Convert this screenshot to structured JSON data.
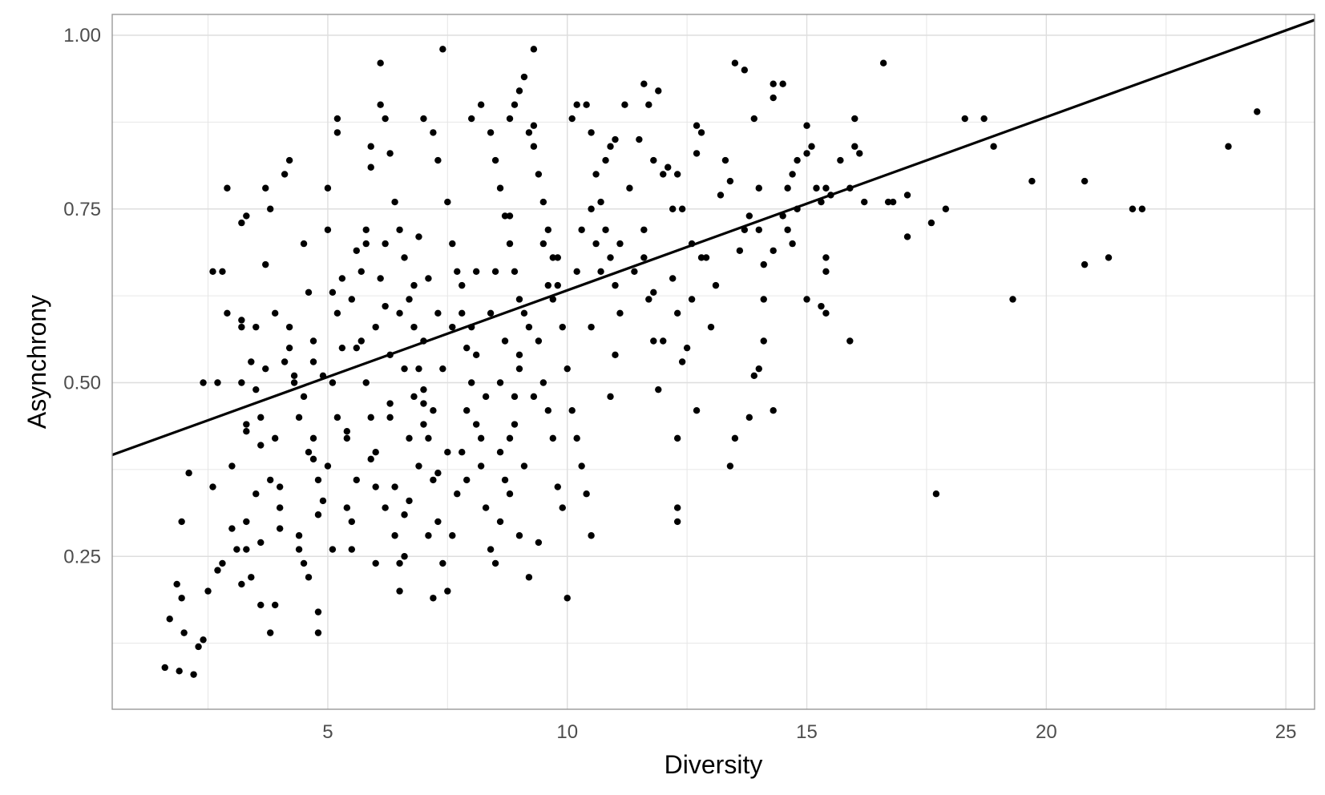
{
  "chart_data": {
    "type": "scatter",
    "title": "",
    "xlabel": "Diversity",
    "ylabel": "Asynchrony",
    "xlim": [
      0.5,
      25.6
    ],
    "ylim": [
      0.03,
      1.03
    ],
    "x_ticks": [
      5,
      10,
      15,
      20,
      25
    ],
    "x_tick_labels": [
      "5",
      "10",
      "15",
      "20",
      "25"
    ],
    "y_ticks": [
      0.25,
      0.5,
      0.75,
      1.0
    ],
    "y_tick_labels": [
      "0.25",
      "0.50",
      "0.75",
      "1.00"
    ],
    "grid": true,
    "legend": "none",
    "colors": {
      "points": "#000000",
      "line": "#000000",
      "grid": "#e6e6e6",
      "panel_border": "#999999",
      "tick_text": "#4d4d4d"
    },
    "trend_line": {
      "x": [
        0.5,
        25.6
      ],
      "y": [
        0.396,
        1.022
      ]
    },
    "points": [
      [
        1.6,
        0.09
      ],
      [
        1.9,
        0.085
      ],
      [
        2.2,
        0.08
      ],
      [
        2.3,
        0.12
      ],
      [
        2.4,
        0.13
      ],
      [
        2.0,
        0.14
      ],
      [
        1.7,
        0.16
      ],
      [
        1.95,
        0.19
      ],
      [
        1.85,
        0.21
      ],
      [
        2.5,
        0.2
      ],
      [
        2.7,
        0.23
      ],
      [
        2.6,
        0.35
      ],
      [
        2.1,
        0.37
      ],
      [
        1.95,
        0.3
      ],
      [
        2.4,
        0.5
      ],
      [
        2.7,
        0.5
      ],
      [
        2.9,
        0.6
      ],
      [
        2.6,
        0.66
      ],
      [
        2.8,
        0.66
      ],
      [
        2.9,
        0.78
      ],
      [
        3.2,
        0.73
      ],
      [
        3.3,
        0.74
      ],
      [
        3.2,
        0.59
      ],
      [
        3.2,
        0.58
      ],
      [
        3.2,
        0.5
      ],
      [
        3.3,
        0.44
      ],
      [
        3.3,
        0.43
      ],
      [
        3.2,
        0.21
      ],
      [
        3.3,
        0.26
      ],
      [
        3.3,
        0.3
      ],
      [
        3.5,
        0.34
      ],
      [
        3.5,
        0.49
      ],
      [
        3.6,
        0.41
      ],
      [
        3.7,
        0.52
      ],
      [
        3.7,
        0.67
      ],
      [
        3.7,
        0.78
      ],
      [
        3.8,
        0.75
      ],
      [
        3.6,
        0.27
      ],
      [
        3.6,
        0.18
      ],
      [
        3.8,
        0.14
      ],
      [
        3.9,
        0.18
      ],
      [
        4.0,
        0.29
      ],
      [
        4.0,
        0.35
      ],
      [
        4.1,
        0.53
      ],
      [
        4.1,
        0.8
      ],
      [
        4.2,
        0.82
      ],
      [
        4.2,
        0.58
      ],
      [
        4.3,
        0.5
      ],
      [
        4.4,
        0.45
      ],
      [
        4.4,
        0.26
      ],
      [
        4.5,
        0.24
      ],
      [
        4.5,
        0.7
      ],
      [
        4.6,
        0.63
      ],
      [
        4.7,
        0.53
      ],
      [
        4.7,
        0.42
      ],
      [
        4.7,
        0.39
      ],
      [
        4.8,
        0.36
      ],
      [
        4.8,
        0.31
      ],
      [
        4.8,
        0.17
      ],
      [
        4.8,
        0.14
      ],
      [
        4.9,
        0.51
      ],
      [
        5.0,
        0.72
      ],
      [
        5.0,
        0.78
      ],
      [
        5.1,
        0.63
      ],
      [
        5.1,
        0.5
      ],
      [
        5.2,
        0.6
      ],
      [
        5.2,
        0.88
      ],
      [
        5.2,
        0.86
      ],
      [
        5.3,
        0.65
      ],
      [
        5.4,
        0.43
      ],
      [
        5.4,
        0.42
      ],
      [
        5.5,
        0.3
      ],
      [
        5.5,
        0.26
      ],
      [
        5.6,
        0.55
      ],
      [
        5.7,
        0.56
      ],
      [
        5.8,
        0.7
      ],
      [
        5.8,
        0.72
      ],
      [
        5.9,
        0.84
      ],
      [
        5.9,
        0.81
      ],
      [
        5.9,
        0.39
      ],
      [
        6.0,
        0.35
      ],
      [
        6.0,
        0.24
      ],
      [
        6.1,
        0.65
      ],
      [
        6.2,
        0.7
      ],
      [
        6.2,
        0.61
      ],
      [
        6.3,
        0.47
      ],
      [
        6.3,
        0.45
      ],
      [
        6.4,
        0.35
      ],
      [
        6.5,
        0.2
      ],
      [
        6.5,
        0.24
      ],
      [
        6.6,
        0.31
      ],
      [
        6.7,
        0.33
      ],
      [
        6.8,
        0.64
      ],
      [
        6.9,
        0.71
      ],
      [
        7.0,
        0.56
      ],
      [
        7.0,
        0.47
      ],
      [
        7.0,
        0.44
      ],
      [
        7.1,
        0.28
      ],
      [
        7.2,
        0.19
      ],
      [
        7.3,
        0.37
      ],
      [
        6.1,
        0.96
      ],
      [
        6.1,
        0.9
      ],
      [
        6.2,
        0.88
      ],
      [
        6.3,
        0.83
      ],
      [
        6.4,
        0.76
      ],
      [
        6.5,
        0.72
      ],
      [
        6.6,
        0.68
      ],
      [
        6.7,
        0.62
      ],
      [
        6.8,
        0.58
      ],
      [
        6.9,
        0.52
      ],
      [
        7.0,
        0.49
      ],
      [
        7.1,
        0.42
      ],
      [
        7.2,
        0.36
      ],
      [
        7.3,
        0.3
      ],
      [
        7.4,
        0.24
      ],
      [
        7.5,
        0.2
      ],
      [
        7.6,
        0.28
      ],
      [
        7.7,
        0.34
      ],
      [
        7.8,
        0.4
      ],
      [
        7.9,
        0.46
      ],
      [
        7.0,
        0.88
      ],
      [
        7.2,
        0.86
      ],
      [
        7.3,
        0.82
      ],
      [
        7.5,
        0.76
      ],
      [
        7.6,
        0.7
      ],
      [
        7.7,
        0.66
      ],
      [
        7.8,
        0.6
      ],
      [
        7.9,
        0.55
      ],
      [
        8.0,
        0.5
      ],
      [
        8.1,
        0.44
      ],
      [
        8.2,
        0.38
      ],
      [
        8.3,
        0.32
      ],
      [
        8.4,
        0.26
      ],
      [
        8.5,
        0.24
      ],
      [
        8.6,
        0.3
      ],
      [
        8.7,
        0.36
      ],
      [
        8.8,
        0.42
      ],
      [
        8.9,
        0.48
      ],
      [
        9.0,
        0.54
      ],
      [
        9.1,
        0.6
      ],
      [
        7.4,
        0.98
      ],
      [
        8.0,
        0.88
      ],
      [
        8.2,
        0.9
      ],
      [
        8.4,
        0.86
      ],
      [
        8.5,
        0.82
      ],
      [
        8.6,
        0.78
      ],
      [
        8.7,
        0.74
      ],
      [
        8.8,
        0.7
      ],
      [
        8.9,
        0.66
      ],
      [
        9.0,
        0.62
      ],
      [
        9.3,
        0.98
      ],
      [
        9.1,
        0.94
      ],
      [
        9.0,
        0.92
      ],
      [
        8.9,
        0.9
      ],
      [
        8.8,
        0.88
      ],
      [
        9.2,
        0.86
      ],
      [
        9.3,
        0.84
      ],
      [
        9.4,
        0.8
      ],
      [
        9.5,
        0.76
      ],
      [
        9.6,
        0.72
      ],
      [
        9.7,
        0.68
      ],
      [
        9.8,
        0.64
      ],
      [
        9.9,
        0.58
      ],
      [
        10.0,
        0.52
      ],
      [
        10.1,
        0.46
      ],
      [
        10.2,
        0.42
      ],
      [
        10.3,
        0.38
      ],
      [
        10.4,
        0.34
      ],
      [
        10.5,
        0.28
      ],
      [
        10.0,
        0.19
      ],
      [
        9.5,
        0.5
      ],
      [
        9.6,
        0.46
      ],
      [
        9.7,
        0.42
      ],
      [
        9.8,
        0.35
      ],
      [
        9.9,
        0.32
      ],
      [
        9.4,
        0.27
      ],
      [
        9.2,
        0.22
      ],
      [
        9.0,
        0.28
      ],
      [
        8.8,
        0.34
      ],
      [
        8.6,
        0.4
      ],
      [
        10.1,
        0.88
      ],
      [
        10.2,
        0.9
      ],
      [
        10.4,
        0.9
      ],
      [
        10.5,
        0.86
      ],
      [
        10.6,
        0.8
      ],
      [
        10.7,
        0.76
      ],
      [
        10.8,
        0.72
      ],
      [
        10.9,
        0.68
      ],
      [
        11.0,
        0.64
      ],
      [
        11.1,
        0.6
      ],
      [
        10.5,
        0.75
      ],
      [
        10.6,
        0.7
      ],
      [
        10.7,
        0.66
      ],
      [
        10.8,
        0.82
      ],
      [
        10.9,
        0.84
      ],
      [
        11.0,
        0.85
      ],
      [
        11.2,
        0.9
      ],
      [
        11.3,
        0.78
      ],
      [
        10.9,
        0.48
      ],
      [
        11.0,
        0.54
      ],
      [
        11.5,
        0.85
      ],
      [
        11.6,
        0.93
      ],
      [
        11.7,
        0.9
      ],
      [
        11.8,
        0.82
      ],
      [
        11.9,
        0.92
      ],
      [
        12.0,
        0.8
      ],
      [
        12.1,
        0.81
      ],
      [
        12.2,
        0.75
      ],
      [
        12.3,
        0.8
      ],
      [
        12.4,
        0.75
      ],
      [
        11.6,
        0.72
      ],
      [
        11.6,
        0.68
      ],
      [
        11.7,
        0.62
      ],
      [
        11.8,
        0.56
      ],
      [
        11.9,
        0.49
      ],
      [
        12.0,
        0.56
      ],
      [
        12.2,
        0.65
      ],
      [
        12.3,
        0.6
      ],
      [
        12.4,
        0.53
      ],
      [
        12.3,
        0.42
      ],
      [
        12.3,
        0.32
      ],
      [
        12.3,
        0.3
      ],
      [
        12.5,
        0.55
      ],
      [
        12.6,
        0.7
      ],
      [
        12.7,
        0.83
      ],
      [
        12.7,
        0.87
      ],
      [
        12.8,
        0.86
      ],
      [
        12.8,
        0.68
      ],
      [
        12.9,
        0.68
      ],
      [
        13.0,
        0.58
      ],
      [
        12.7,
        0.46
      ],
      [
        13.2,
        0.77
      ],
      [
        13.3,
        0.82
      ],
      [
        13.4,
        0.79
      ],
      [
        13.5,
        0.96
      ],
      [
        13.7,
        0.95
      ],
      [
        13.8,
        0.74
      ],
      [
        13.7,
        0.72
      ],
      [
        13.8,
        0.45
      ],
      [
        13.5,
        0.42
      ],
      [
        13.4,
        0.38
      ],
      [
        13.9,
        0.88
      ],
      [
        14.0,
        0.78
      ],
      [
        14.0,
        0.72
      ],
      [
        14.1,
        0.67
      ],
      [
        14.1,
        0.56
      ],
      [
        14.1,
        0.62
      ],
      [
        14.0,
        0.52
      ],
      [
        13.9,
        0.51
      ],
      [
        14.3,
        0.91
      ],
      [
        14.3,
        0.93
      ],
      [
        14.5,
        0.93
      ],
      [
        14.3,
        0.69
      ],
      [
        14.3,
        0.46
      ],
      [
        14.6,
        0.78
      ],
      [
        14.7,
        0.8
      ],
      [
        14.6,
        0.72
      ],
      [
        14.7,
        0.7
      ],
      [
        14.8,
        0.75
      ],
      [
        14.8,
        0.82
      ],
      [
        15.0,
        0.87
      ],
      [
        15.0,
        0.83
      ],
      [
        15.1,
        0.84
      ],
      [
        15.0,
        0.62
      ],
      [
        15.2,
        0.78
      ],
      [
        15.3,
        0.76
      ],
      [
        15.3,
        0.61
      ],
      [
        15.4,
        0.6
      ],
      [
        15.4,
        0.66
      ],
      [
        15.4,
        0.68
      ],
      [
        15.4,
        0.78
      ],
      [
        15.5,
        0.77
      ],
      [
        15.7,
        0.82
      ],
      [
        15.9,
        0.56
      ],
      [
        15.9,
        0.78
      ],
      [
        16.0,
        0.88
      ],
      [
        16.0,
        0.84
      ],
      [
        16.1,
        0.83
      ],
      [
        16.2,
        0.76
      ],
      [
        16.6,
        0.96
      ],
      [
        16.7,
        0.76
      ],
      [
        16.8,
        0.76
      ],
      [
        17.1,
        0.77
      ],
      [
        17.1,
        0.71
      ],
      [
        17.6,
        0.73
      ],
      [
        17.7,
        0.34
      ],
      [
        17.9,
        0.75
      ],
      [
        18.3,
        0.88
      ],
      [
        18.7,
        0.88
      ],
      [
        18.9,
        0.84
      ],
      [
        19.3,
        0.62
      ],
      [
        19.7,
        0.79
      ],
      [
        20.8,
        0.79
      ],
      [
        20.8,
        0.67
      ],
      [
        21.3,
        0.68
      ],
      [
        21.8,
        0.75
      ],
      [
        22.0,
        0.75
      ],
      [
        23.8,
        0.84
      ],
      [
        24.4,
        0.89
      ],
      [
        9.3,
        0.87
      ],
      [
        3.0,
        0.29
      ],
      [
        3.1,
        0.26
      ],
      [
        3.4,
        0.22
      ],
      [
        3.5,
        0.58
      ],
      [
        3.9,
        0.6
      ],
      [
        4.2,
        0.55
      ],
      [
        4.3,
        0.51
      ],
      [
        4.5,
        0.48
      ],
      [
        4.6,
        0.4
      ],
      [
        4.9,
        0.33
      ],
      [
        5.0,
        0.38
      ],
      [
        5.3,
        0.55
      ],
      [
        5.5,
        0.62
      ],
      [
        5.6,
        0.69
      ],
      [
        5.7,
        0.66
      ],
      [
        5.8,
        0.5
      ],
      [
        5.9,
        0.45
      ],
      [
        6.0,
        0.4
      ],
      [
        6.2,
        0.32
      ],
      [
        6.4,
        0.28
      ],
      [
        6.6,
        0.25
      ],
      [
        6.7,
        0.42
      ],
      [
        6.9,
        0.38
      ],
      [
        7.1,
        0.65
      ],
      [
        7.4,
        0.52
      ],
      [
        7.6,
        0.58
      ],
      [
        7.8,
        0.64
      ],
      [
        8.0,
        0.58
      ],
      [
        8.1,
        0.54
      ],
      [
        8.3,
        0.48
      ],
      [
        8.4,
        0.6
      ],
      [
        8.5,
        0.66
      ],
      [
        8.7,
        0.56
      ],
      [
        8.9,
        0.44
      ],
      [
        9.1,
        0.38
      ],
      [
        9.3,
        0.48
      ],
      [
        9.4,
        0.56
      ],
      [
        9.6,
        0.64
      ],
      [
        9.8,
        0.68
      ],
      [
        10.3,
        0.72
      ],
      [
        3.4,
        0.53
      ],
      [
        3.6,
        0.45
      ],
      [
        3.8,
        0.36
      ],
      [
        4.0,
        0.32
      ],
      [
        4.4,
        0.28
      ],
      [
        4.6,
        0.22
      ],
      [
        5.1,
        0.26
      ],
      [
        5.4,
        0.32
      ],
      [
        5.6,
        0.36
      ],
      [
        6.3,
        0.54
      ],
      [
        6.5,
        0.6
      ],
      [
        6.8,
        0.48
      ],
      [
        7.2,
        0.46
      ],
      [
        7.5,
        0.4
      ],
      [
        7.9,
        0.36
      ],
      [
        8.2,
        0.42
      ],
      [
        8.6,
        0.5
      ],
      [
        9.0,
        0.52
      ],
      [
        9.2,
        0.58
      ],
      [
        9.7,
        0.62
      ],
      [
        2.8,
        0.24
      ],
      [
        3.0,
        0.38
      ],
      [
        3.9,
        0.42
      ],
      [
        4.7,
        0.56
      ],
      [
        5.2,
        0.45
      ],
      [
        6.0,
        0.58
      ],
      [
        6.6,
        0.52
      ],
      [
        7.3,
        0.6
      ],
      [
        8.1,
        0.66
      ],
      [
        8.8,
        0.74
      ],
      [
        9.5,
        0.7
      ],
      [
        10.2,
        0.66
      ],
      [
        10.5,
        0.58
      ],
      [
        11.1,
        0.7
      ],
      [
        11.4,
        0.66
      ],
      [
        11.8,
        0.63
      ],
      [
        12.6,
        0.62
      ],
      [
        13.1,
        0.64
      ],
      [
        13.6,
        0.69
      ],
      [
        14.5,
        0.74
      ]
    ]
  }
}
